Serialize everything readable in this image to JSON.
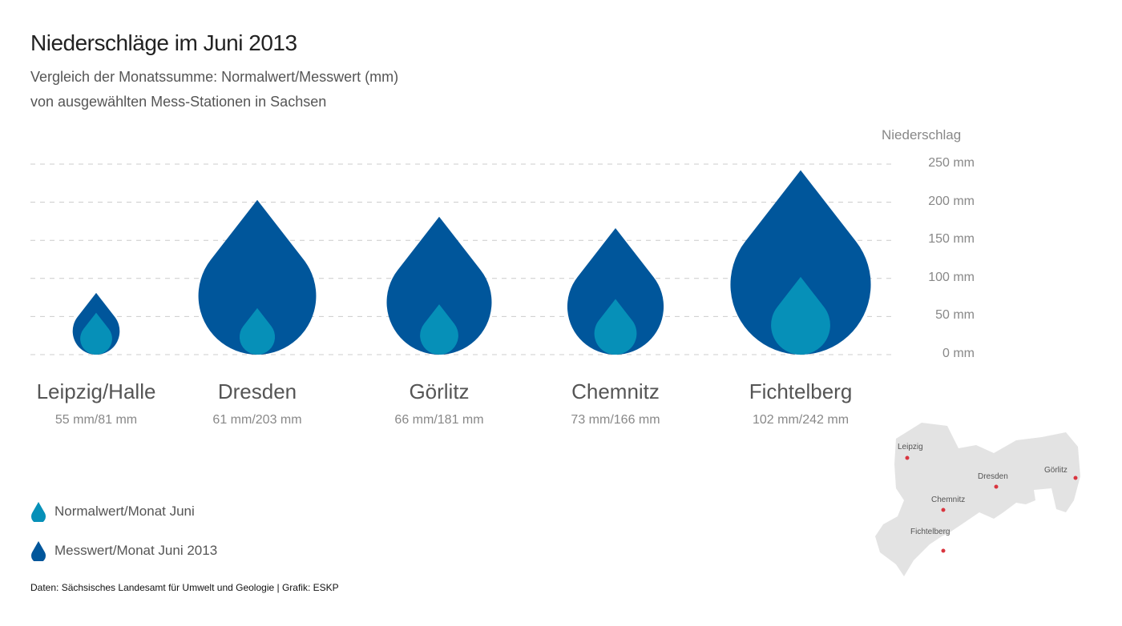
{
  "title": "Niederschläge im Juni 2013",
  "subtitle_line1": "Vergleich der Monatssumme: Normalwert/Messwert (mm)",
  "subtitle_line2": "von ausgewählten Mess-Stationen in Sachsen",
  "footer": "Daten: Sächsisches Landesamt für Umwelt und Geologie | Grafik: ESKP",
  "colors": {
    "messwert": "#00569b",
    "normalwert": "#0690b8",
    "grid": "#cccccc",
    "map": "#e3e3e3",
    "marker": "#d9353f"
  },
  "chart_data": {
    "type": "bar",
    "mark": "droplet",
    "ylabel": "Niederschlag",
    "ylim": [
      0,
      250
    ],
    "yticks": [
      0,
      50,
      100,
      150,
      200,
      250
    ],
    "ytick_labels": [
      "0 mm",
      "50 mm",
      "100 mm",
      "150 mm",
      "200 mm",
      "250 mm"
    ],
    "grid": true,
    "categories": [
      "Leipzig/Halle",
      "Dresden",
      "Görlitz",
      "Chemnitz",
      "Fichtelberg"
    ],
    "value_labels": [
      "55 mm/81 mm",
      "61 mm/203 mm",
      "66 mm/181 mm",
      "73 mm/166 mm",
      "102 mm/242 mm"
    ],
    "series": [
      {
        "name": "Messwert/Monat Juni 2013",
        "values": [
          81,
          203,
          181,
          166,
          242
        ]
      },
      {
        "name": "Normalwert/Monat Juni",
        "values": [
          55,
          61,
          66,
          73,
          102
        ]
      }
    ],
    "legend": [
      "Normalwert/Monat Juni",
      "Messwert/Monat Juni 2013"
    ],
    "legend_placement": "bottom-left"
  },
  "map": {
    "labels": [
      "Leipzig",
      "Dresden",
      "Görlitz",
      "Chemnitz",
      "Fichtelberg"
    ]
  }
}
